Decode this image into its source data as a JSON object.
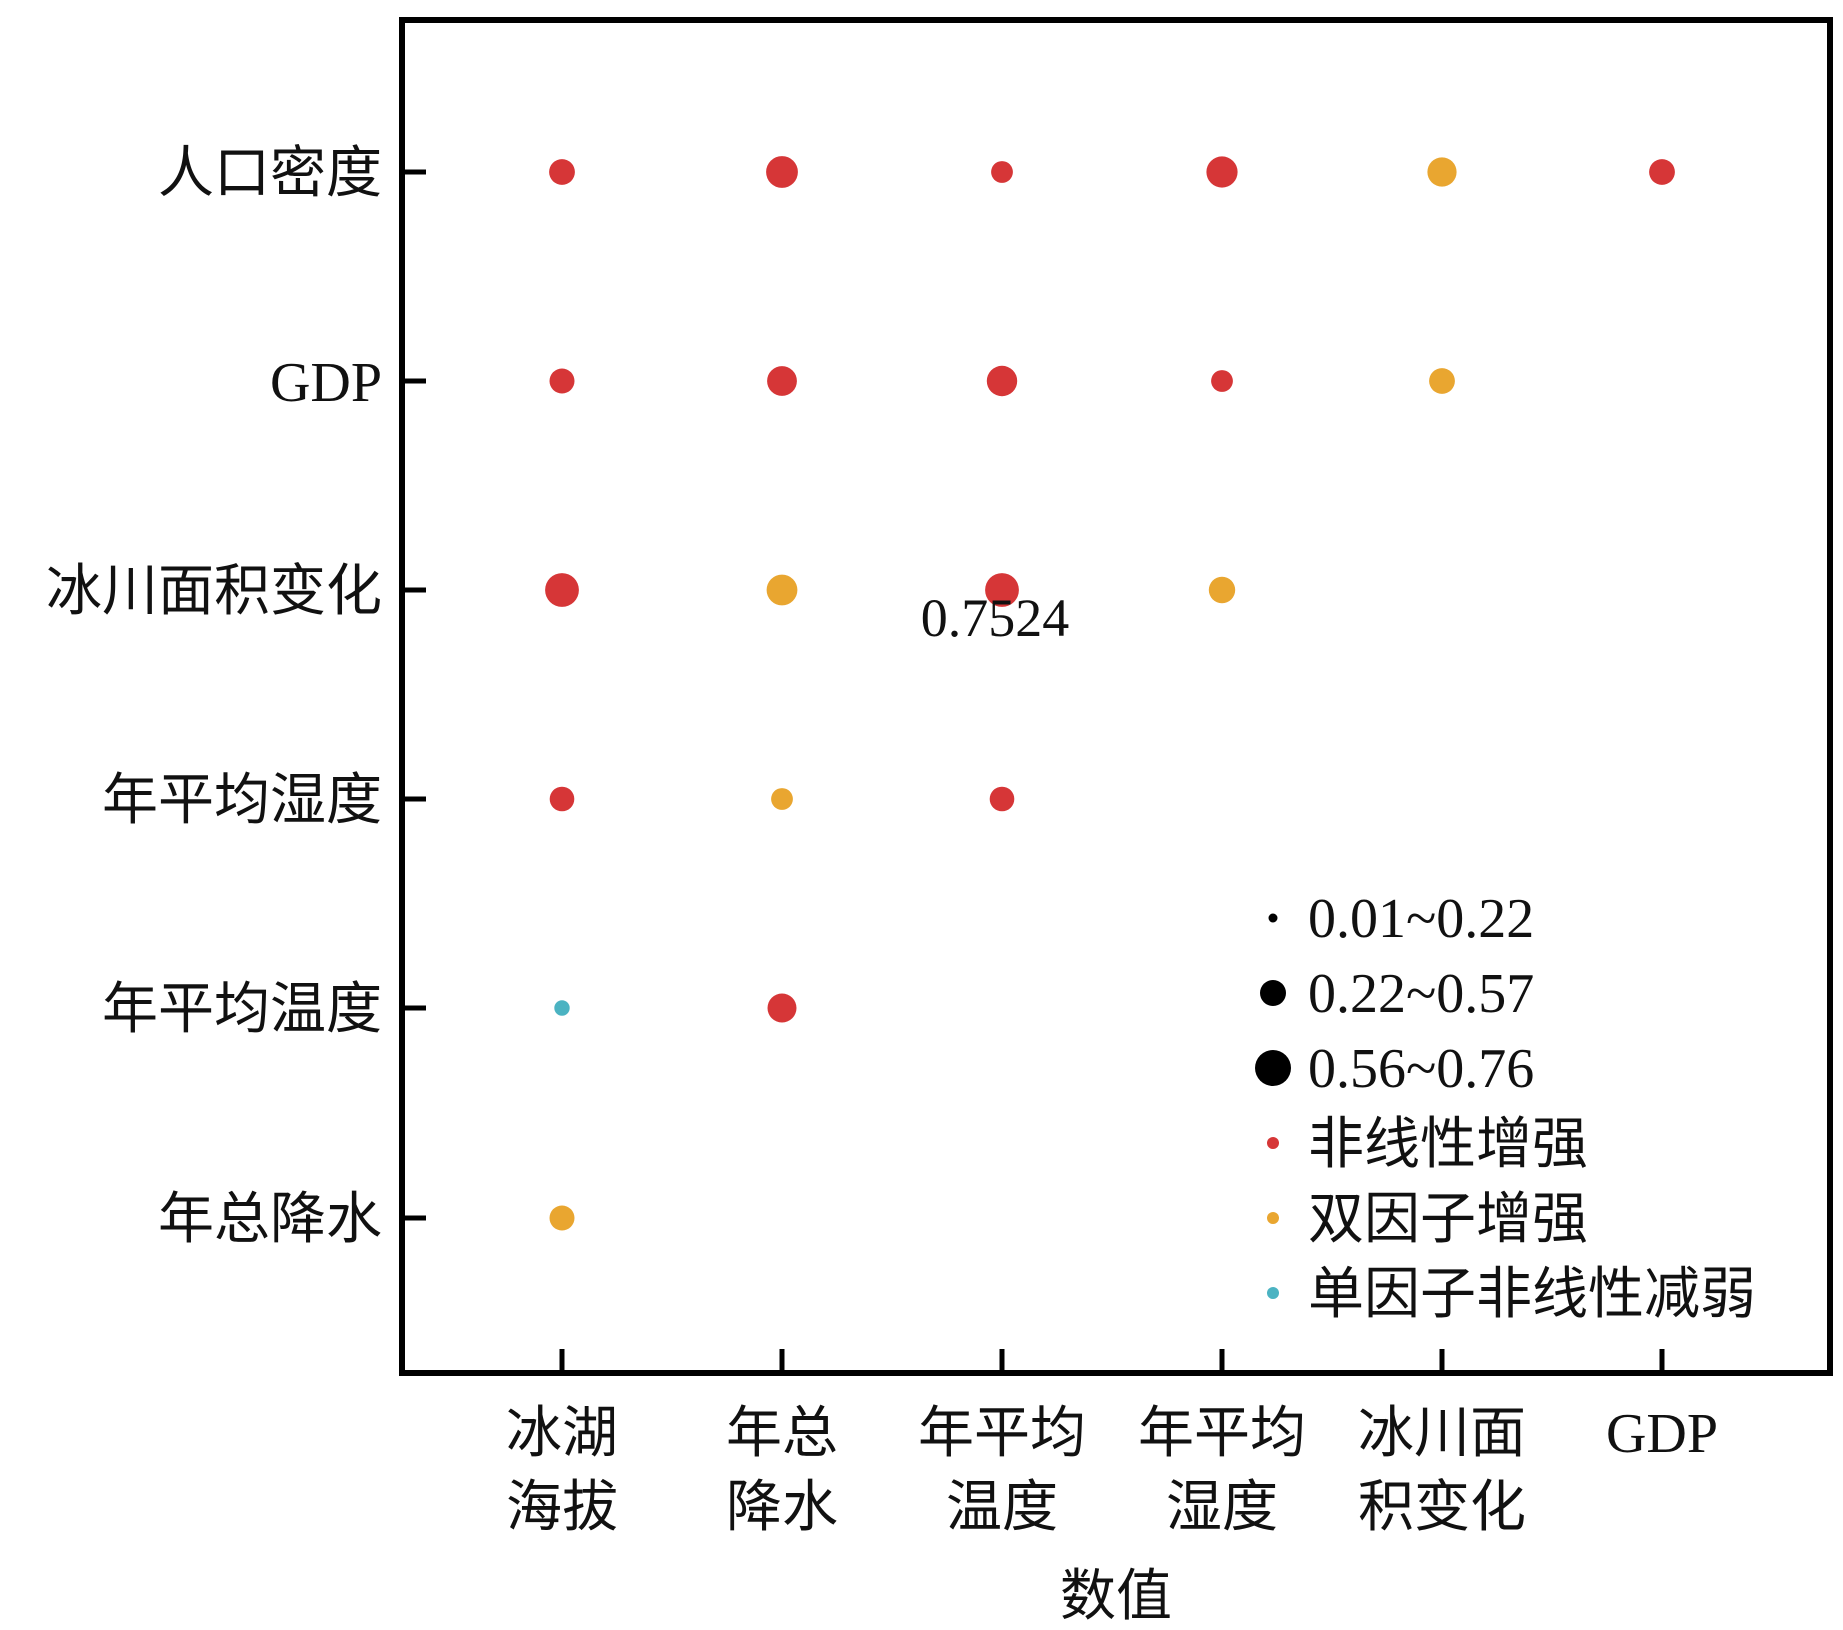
{
  "colors": {
    "nonlinear_enhance": "#d63637",
    "bi_enhance": "#e9a630",
    "single_nonlinear_weaken": "#4bb3c2",
    "size_marker": "#000000",
    "axis": "#000000"
  },
  "chart_data": {
    "type": "scatter",
    "title": "",
    "xlabel": "数值",
    "ylabel": "",
    "x_categories": [
      [
        "冰湖",
        "海拔"
      ],
      [
        "年总",
        "降水"
      ],
      [
        "年平均",
        "温度"
      ],
      [
        "年平均",
        "湿度"
      ],
      [
        "冰川面",
        "积变化"
      ],
      [
        "GDP"
      ]
    ],
    "y_categories": [
      "人口密度",
      "GDP",
      "冰川面积变化",
      "年平均湿度",
      "年平均温度",
      "年总降水"
    ],
    "size_bins": [
      {
        "label": "0.01~0.22",
        "range": [
          0.01,
          0.22
        ]
      },
      {
        "label": "0.22~0.57",
        "range": [
          0.22,
          0.57
        ]
      },
      {
        "label": "0.56~0.76",
        "range": [
          0.56,
          0.76
        ]
      }
    ],
    "type_legend": [
      {
        "key": "nonlinear_enhance",
        "label": "非线性增强"
      },
      {
        "key": "bi_enhance",
        "label": "双因子增强"
      },
      {
        "key": "single_nonlinear_weaken",
        "label": "单因子非线性减弱"
      }
    ],
    "points": [
      {
        "x": 0,
        "y": 0,
        "value": 0.45,
        "type": "nonlinear_enhance"
      },
      {
        "x": 1,
        "y": 0,
        "value": 0.68,
        "type": "nonlinear_enhance"
      },
      {
        "x": 2,
        "y": 0,
        "value": 0.3,
        "type": "nonlinear_enhance"
      },
      {
        "x": 3,
        "y": 0,
        "value": 0.65,
        "type": "nonlinear_enhance"
      },
      {
        "x": 4,
        "y": 0,
        "value": 0.58,
        "type": "bi_enhance"
      },
      {
        "x": 5,
        "y": 0,
        "value": 0.45,
        "type": "nonlinear_enhance"
      },
      {
        "x": 0,
        "y": 1,
        "value": 0.42,
        "type": "nonlinear_enhance"
      },
      {
        "x": 1,
        "y": 1,
        "value": 0.6,
        "type": "nonlinear_enhance"
      },
      {
        "x": 2,
        "y": 1,
        "value": 0.62,
        "type": "nonlinear_enhance"
      },
      {
        "x": 3,
        "y": 1,
        "value": 0.3,
        "type": "nonlinear_enhance"
      },
      {
        "x": 4,
        "y": 1,
        "value": 0.45,
        "type": "bi_enhance"
      },
      {
        "x": 0,
        "y": 2,
        "value": 0.75,
        "type": "nonlinear_enhance"
      },
      {
        "x": 1,
        "y": 2,
        "value": 0.64,
        "type": "bi_enhance"
      },
      {
        "x": 2,
        "y": 2,
        "value": 0.7524,
        "type": "nonlinear_enhance"
      },
      {
        "x": 3,
        "y": 2,
        "value": 0.47,
        "type": "bi_enhance"
      },
      {
        "x": 0,
        "y": 3,
        "value": 0.4,
        "type": "nonlinear_enhance"
      },
      {
        "x": 1,
        "y": 3,
        "value": 0.3,
        "type": "bi_enhance"
      },
      {
        "x": 2,
        "y": 3,
        "value": 0.4,
        "type": "nonlinear_enhance"
      },
      {
        "x": 0,
        "y": 4,
        "value": 0.05,
        "type": "single_nonlinear_weaken"
      },
      {
        "x": 1,
        "y": 4,
        "value": 0.57,
        "type": "nonlinear_enhance"
      },
      {
        "x": 0,
        "y": 5,
        "value": 0.42,
        "type": "bi_enhance"
      }
    ],
    "annotations": [
      {
        "text": "0.7524",
        "x": 2,
        "y": 2
      }
    ],
    "grid": false,
    "legend_position": "bottom-right"
  }
}
